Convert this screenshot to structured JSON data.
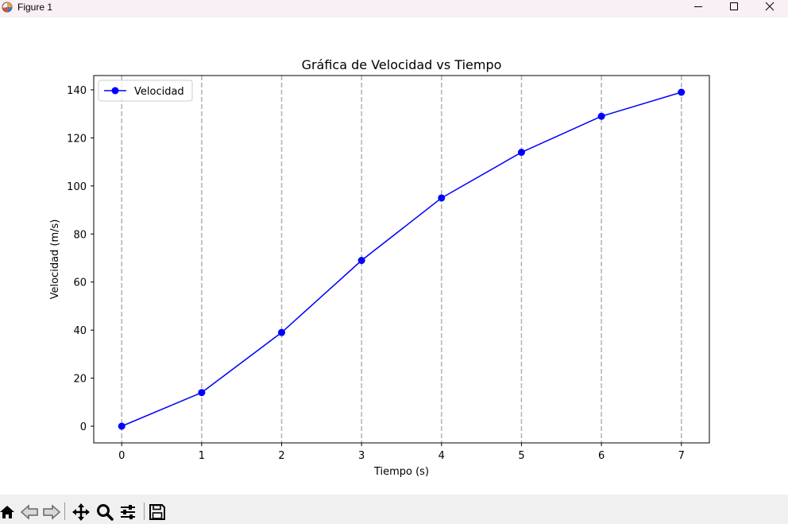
{
  "window": {
    "title": "Figure 1",
    "controls": [
      "minimize-icon",
      "maximize-icon",
      "close-icon"
    ]
  },
  "toolbar": {
    "buttons": [
      "home-icon",
      "back-icon",
      "forward-icon",
      "pan-icon",
      "zoom-icon",
      "configure-subplots-icon",
      "save-icon"
    ]
  },
  "chart_data": {
    "type": "line",
    "title": "Gráfica de Velocidad vs Tiempo",
    "xlabel": "Tiempo (s)",
    "ylabel": "Velocidad (m/s)",
    "x": [
      0,
      1,
      2,
      3,
      4,
      5,
      6,
      7
    ],
    "series": [
      {
        "name": "Velocidad",
        "values": [
          0,
          14,
          39,
          69,
          95,
          114,
          129,
          139
        ],
        "color": "#0000ff",
        "marker": "circle"
      }
    ],
    "xticks": [
      "0",
      "1",
      "2",
      "3",
      "4",
      "5",
      "6",
      "7"
    ],
    "yticks": [
      "0",
      "20",
      "40",
      "60",
      "80",
      "100",
      "120",
      "140"
    ],
    "xlim": [
      -0.35,
      7.35
    ],
    "ylim": [
      -6.95,
      145.95
    ],
    "grid": {
      "axis": "x",
      "style": "dashed",
      "color": "#b0b0b0"
    },
    "legend": {
      "position": "upper left"
    }
  }
}
